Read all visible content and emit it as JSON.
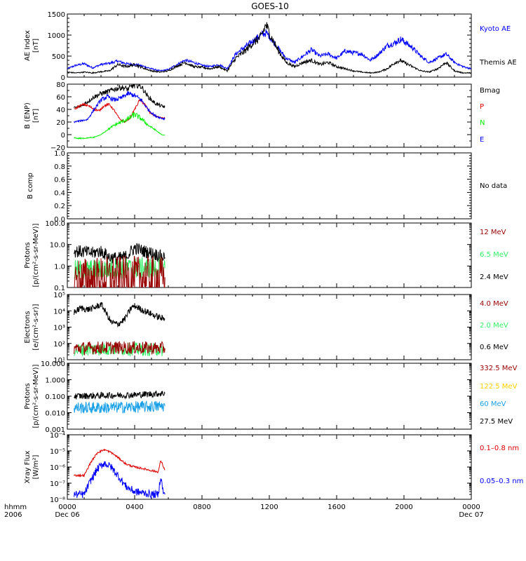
{
  "title": "GOES-10",
  "x_axis": {
    "ticks": [
      "0000",
      "0400",
      "0800",
      "1200",
      "1600",
      "2000",
      "0000"
    ],
    "tick_hours": [
      0,
      4,
      8,
      12,
      16,
      20,
      24
    ],
    "left_caption": [
      "hhmm",
      "2006"
    ],
    "start_date": "Dec 06",
    "end_date": "Dec 07",
    "range_hours": [
      0,
      24
    ]
  },
  "colors": {
    "black": "#000000",
    "blue": "#0000ff",
    "red": "#dd0000",
    "green": "#00ee00",
    "darkred": "#990000",
    "yellow": "#ffd000",
    "cyan": "#1aa0e6",
    "lightgreen": "#33ee66"
  },
  "chart_data": [
    {
      "type": "line",
      "id": "ae",
      "ylabel": [
        "AE Index",
        "[nT]"
      ],
      "ylim": [
        0,
        1500
      ],
      "scale": "linear",
      "ticks": [
        0,
        500,
        1000,
        1500
      ],
      "tick_labels": [
        "0",
        "500",
        "1000",
        "1500"
      ],
      "legend": [
        {
          "label": "Kyoto AE",
          "color": "#0000ff"
        },
        {
          "label": "Themis AE",
          "color": "#000000"
        }
      ],
      "series": [
        {
          "name": "Kyoto AE",
          "color": "#0000ff",
          "noise": 0.09,
          "x": [
            0,
            0.5,
            1,
            1.5,
            2,
            2.5,
            3,
            3.5,
            4,
            4.5,
            5,
            5.5,
            6,
            6.5,
            7,
            7.5,
            8,
            8.5,
            9,
            9.5,
            10,
            10.5,
            11,
            11.5,
            11.8,
            12,
            12.5,
            13,
            13.5,
            14,
            14.5,
            15,
            15.5,
            16,
            16.5,
            17,
            17.5,
            18,
            18.5,
            19,
            19.5,
            19.8,
            20,
            20.5,
            21,
            21.5,
            22,
            22.5,
            23,
            23.5,
            24
          ],
          "y": [
            200,
            280,
            320,
            220,
            300,
            330,
            380,
            320,
            300,
            260,
            200,
            150,
            180,
            300,
            400,
            350,
            280,
            250,
            300,
            200,
            550,
            700,
            850,
            1000,
            1050,
            980,
            700,
            450,
            350,
            500,
            650,
            500,
            550,
            450,
            620,
            580,
            550,
            400,
            550,
            750,
            820,
            900,
            850,
            700,
            500,
            350,
            450,
            550,
            350,
            250,
            200
          ]
        },
        {
          "name": "Themis AE",
          "color": "#000000",
          "noise": 0.12,
          "x": [
            0,
            0.5,
            1,
            1.5,
            2,
            2.5,
            3,
            3.5,
            4,
            4.5,
            5,
            5.5,
            6,
            6.5,
            7,
            7.5,
            8,
            8.5,
            9,
            9.5,
            10,
            10.5,
            11,
            11.5,
            11.8,
            12,
            12.5,
            13,
            13.5,
            14,
            14.5,
            15,
            15.5,
            16,
            16.5,
            17,
            17.5,
            18,
            18.5,
            19,
            19.5,
            19.8,
            20,
            20.5,
            21,
            21.5,
            22,
            22.5,
            23,
            23.5,
            24
          ],
          "y": [
            120,
            100,
            120,
            100,
            130,
            150,
            300,
            250,
            300,
            220,
            150,
            120,
            150,
            260,
            350,
            250,
            230,
            200,
            250,
            150,
            450,
            600,
            800,
            950,
            1250,
            1050,
            650,
            350,
            250,
            350,
            400,
            300,
            350,
            250,
            200,
            150,
            120,
            100,
            120,
            200,
            350,
            400,
            350,
            250,
            150,
            120,
            200,
            350,
            150,
            100,
            100
          ]
        }
      ]
    },
    {
      "type": "line",
      "id": "bfield",
      "ylabel": [
        "B (ENP)",
        "[nT]"
      ],
      "ylim": [
        -20,
        80
      ],
      "scale": "linear",
      "ticks": [
        -20,
        0,
        20,
        40,
        60,
        80
      ],
      "tick_labels": [
        "−20",
        "0",
        "20",
        "40",
        "60",
        "80"
      ],
      "legend": [
        {
          "label": "Bmag",
          "color": "#000000"
        },
        {
          "label": "P",
          "color": "#dd0000"
        },
        {
          "label": "N",
          "color": "#00ee00"
        },
        {
          "label": "E",
          "color": "#0000ff"
        }
      ],
      "series": [
        {
          "name": "Bmag",
          "color": "#000000",
          "noise": 0.06,
          "x": [
            0.4,
            0.8,
            1.2,
            1.6,
            2.0,
            2.4,
            2.8,
            3.2,
            3.6,
            4.0,
            4.4,
            4.8,
            5.2,
            5.6,
            5.8
          ],
          "y": [
            42,
            45,
            52,
            60,
            65,
            68,
            72,
            75,
            72,
            80,
            76,
            60,
            50,
            45,
            44
          ]
        },
        {
          "name": "P",
          "color": "#dd0000",
          "noise": 0.04,
          "x": [
            0.4,
            0.7,
            1.0,
            1.3,
            1.6,
            1.9,
            2.2,
            2.5,
            2.8,
            3.1,
            3.4,
            3.7,
            4.0,
            4.3,
            4.6,
            4.9,
            5.2,
            5.5,
            5.8
          ],
          "y": [
            40,
            45,
            48,
            45,
            40,
            38,
            46,
            48,
            38,
            25,
            20,
            25,
            40,
            55,
            48,
            35,
            30,
            27,
            26
          ]
        },
        {
          "name": "N",
          "color": "#00ee00",
          "noise": 0.15,
          "x": [
            0.4,
            0.8,
            1.2,
            1.6,
            2.0,
            2.4,
            2.8,
            3.2,
            3.6,
            4.0,
            4.4,
            4.8,
            5.2,
            5.6,
            5.8
          ],
          "y": [
            -5,
            -6,
            -5,
            -4,
            0,
            8,
            15,
            20,
            25,
            32,
            25,
            15,
            8,
            0,
            -1
          ]
        },
        {
          "name": "E",
          "color": "#0000ff",
          "noise": 0.06,
          "x": [
            0.4,
            0.8,
            1.2,
            1.6,
            2.0,
            2.4,
            2.8,
            3.2,
            3.6,
            4.0,
            4.4,
            4.8,
            5.2,
            5.6,
            5.8
          ],
          "y": [
            20,
            22,
            24,
            40,
            55,
            60,
            55,
            58,
            65,
            62,
            55,
            40,
            30,
            26,
            25
          ]
        }
      ]
    },
    {
      "type": "line",
      "id": "bcomp",
      "ylabel": [
        "B comp"
      ],
      "ylim": [
        0,
        1
      ],
      "scale": "linear",
      "ticks": [
        0,
        0.2,
        0.4,
        0.6,
        0.8,
        1.0
      ],
      "tick_labels": [
        "0.0",
        "0.2",
        "0.4",
        "0.6",
        "0.8",
        "1.0"
      ],
      "legend": [
        {
          "label": "No data",
          "color": "#000000"
        }
      ],
      "series": []
    },
    {
      "type": "line",
      "id": "protons1",
      "ylabel": [
        "Protons",
        "[p/(cm²-s-sr-MeV)]"
      ],
      "ylim": [
        0.1,
        100
      ],
      "scale": "log",
      "ticks": [
        0.1,
        1,
        10,
        100
      ],
      "tick_labels": [
        "0.1",
        "1.0",
        "10.0",
        "100.0"
      ],
      "legend": [
        {
          "label": "12 MeV",
          "color": "#990000"
        },
        {
          "label": "6.5 MeV",
          "color": "#33ee66"
        },
        {
          "label": "2.4 MeV",
          "color": "#000000"
        }
      ],
      "series": [
        {
          "name": "2.4 MeV",
          "color": "#000000",
          "noise": 0.15,
          "x": [
            0.4,
            1.0,
            1.5,
            2.0,
            2.5,
            3.0,
            3.5,
            4.0,
            4.5,
            5.0,
            5.5,
            5.8
          ],
          "y": [
            5,
            4.5,
            4,
            5,
            2.5,
            2.2,
            2.8,
            7,
            5,
            4,
            3,
            2.5
          ]
        },
        {
          "name": "6.5 MeV",
          "color": "#33ee66",
          "noise": 0.25,
          "x": [
            0.4,
            2.0,
            4.0,
            5.8
          ],
          "y": [
            0.6,
            0.7,
            0.8,
            0.8
          ]
        },
        {
          "name": "12 MeV",
          "color": "#990000",
          "noise": 0.5,
          "x": [
            0.4,
            2.0,
            4.0,
            5.8
          ],
          "y": [
            0.25,
            0.28,
            0.3,
            0.3
          ]
        }
      ]
    },
    {
      "type": "line",
      "id": "electrons",
      "ylabel": [
        "Electrons",
        "[e/(cm²-s-sr)]"
      ],
      "ylim": [
        10,
        100000
      ],
      "scale": "log",
      "ticks": [
        10,
        100,
        1000,
        10000,
        100000
      ],
      "tick_labels": [
        "10¹",
        "10²",
        "10³",
        "10⁴",
        "10⁵"
      ],
      "legend": [
        {
          "label": "4.0 MeV",
          "color": "#990000"
        },
        {
          "label": "2.0 MeV",
          "color": "#33ee66"
        },
        {
          "label": "0.6 MeV",
          "color": "#000000"
        }
      ],
      "series": [
        {
          "name": "0.6 MeV",
          "color": "#000000",
          "noise": 0.1,
          "x": [
            0.4,
            0.8,
            1.2,
            1.6,
            2.0,
            2.2,
            2.6,
            3.0,
            3.4,
            3.8,
            4.0,
            4.4,
            4.8,
            5.2,
            5.6,
            5.8
          ],
          "y": [
            8000,
            15000,
            12000,
            15000,
            25000,
            12000,
            2000,
            1500,
            3000,
            15000,
            20000,
            12000,
            8000,
            5000,
            3500,
            3000
          ]
        },
        {
          "name": "2.0 MeV",
          "color": "#33ee66",
          "noise": 0.2,
          "x": [
            0.4,
            2.0,
            4.0,
            5.8
          ],
          "y": [
            40,
            45,
            45,
            40
          ]
        },
        {
          "name": "4.0 MeV",
          "color": "#990000",
          "noise": 0.2,
          "x": [
            0.4,
            2.0,
            4.0,
            5.8
          ],
          "y": [
            50,
            55,
            55,
            50
          ]
        }
      ]
    },
    {
      "type": "line",
      "id": "protons2",
      "ylabel": [
        "Protons",
        "[p/(cm²-s-sr-MeV)]"
      ],
      "ylim": [
        0.001,
        10
      ],
      "scale": "log",
      "ticks": [
        0.001,
        0.01,
        0.1,
        1,
        10
      ],
      "tick_labels": [
        "0.001",
        "0.010",
        "0.100",
        "1.000",
        "10.000"
      ],
      "legend": [
        {
          "label": "332.5 MeV",
          "color": "#990000"
        },
        {
          "label": "122.5 MeV",
          "color": "#ffd000"
        },
        {
          "label": "60 MeV",
          "color": "#1aa0e6"
        },
        {
          "label": "27.5 MeV",
          "color": "#000000"
        }
      ],
      "series": [
        {
          "name": "27.5 MeV",
          "color": "#000000",
          "noise": 0.1,
          "x": [
            0.4,
            2.0,
            4.0,
            5.8
          ],
          "y": [
            0.1,
            0.11,
            0.12,
            0.15
          ]
        },
        {
          "name": "60 MeV",
          "color": "#1aa0e6",
          "noise": 0.18,
          "x": [
            0.4,
            2.0,
            4.0,
            5.8
          ],
          "y": [
            0.02,
            0.02,
            0.022,
            0.025
          ]
        }
      ]
    },
    {
      "type": "line",
      "id": "xray",
      "ylabel": [
        "Xray Flux",
        "[W/m²]"
      ],
      "ylim": [
        1e-08,
        0.0001
      ],
      "scale": "log",
      "ticks": [
        1e-08,
        1e-07,
        1e-06,
        1e-05,
        0.0001
      ],
      "tick_labels": [
        "10⁻⁸",
        "10⁻⁷",
        "10⁻⁶",
        "10⁻⁵",
        "10⁻⁴"
      ],
      "legend": [
        {
          "label": "0.1–0.8 nm",
          "color": "#dd0000"
        },
        {
          "label": "0.05–0.3 nm",
          "color": "#0000ff"
        }
      ],
      "series": [
        {
          "name": "0.1–0.8 nm",
          "color": "#dd0000",
          "noise": 0.03,
          "x": [
            0.4,
            1.0,
            1.4,
            1.8,
            2.2,
            2.6,
            3.0,
            3.5,
            4.0,
            4.5,
            5.0,
            5.4,
            5.55,
            5.65,
            5.75,
            5.8
          ],
          "y": [
            3e-07,
            3e-07,
            2e-06,
            8e-06,
            1.2e-05,
            8e-06,
            4e-06,
            1.5e-06,
            1e-06,
            8e-07,
            6e-07,
            5e-07,
            2.5e-06,
            1.5e-06,
            8e-07,
            7e-07
          ]
        },
        {
          "name": "0.05–0.3 nm",
          "color": "#0000ff",
          "noise": 0.12,
          "x": [
            0.4,
            1.0,
            1.4,
            1.8,
            2.2,
            2.6,
            3.0,
            3.5,
            4.0,
            4.5,
            5.0,
            5.4,
            5.55,
            5.65,
            5.75,
            5.8
          ],
          "y": [
            2e-08,
            2e-08,
            1.5e-07,
            8e-07,
            1.8e-06,
            1e-06,
            3e-07,
            6e-08,
            3e-08,
            2.5e-08,
            2e-08,
            2e-08,
            3e-07,
            5e-08,
            2e-08,
            2e-08
          ]
        }
      ]
    }
  ]
}
